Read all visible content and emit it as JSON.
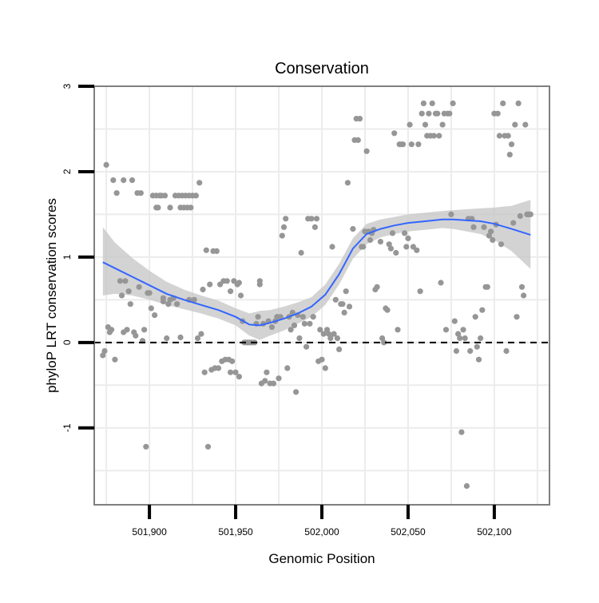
{
  "chart_data": {
    "type": "scatter",
    "title": "Conservation",
    "xlabel": "Genomic Position",
    "ylabel": "phyloP LRT conservation scores",
    "xlim": [
      501868,
      502132
    ],
    "ylim": [
      -1.9,
      3.0
    ],
    "x_ticks": [
      501900,
      501950,
      502000,
      502050,
      502100
    ],
    "x_tick_labels": [
      "501,900",
      "501,950",
      "502,000",
      "502,050",
      "502,100"
    ],
    "y_ticks": [
      -1,
      0,
      1,
      2,
      3
    ],
    "y_tick_labels": [
      "-1",
      "0",
      "1",
      "2",
      "3"
    ],
    "grid": true,
    "reference_line": {
      "y": 0,
      "style": "dashed"
    },
    "colors": {
      "points": "#969696",
      "smooth_line": "#3366ff",
      "ribbon": "#c8c8c8",
      "panel_border": "#7f7f7f",
      "grid": "#ececec"
    },
    "series": [
      {
        "name": "scores",
        "points": [
          [
            501873,
            -0.15
          ],
          [
            501874,
            -0.1
          ],
          [
            501875,
            2.08
          ],
          [
            501876,
            0.18
          ],
          [
            501877,
            0.12
          ],
          [
            501878,
            0.15
          ],
          [
            501879,
            1.9
          ],
          [
            501880,
            -0.2
          ],
          [
            501881,
            1.75
          ],
          [
            501883,
            0.72
          ],
          [
            501884,
            0.55
          ],
          [
            501885,
            1.9
          ],
          [
            501885,
            0.12
          ],
          [
            501886,
            0.72
          ],
          [
            501887,
            0.15
          ],
          [
            501888,
            0.6
          ],
          [
            501889,
            0.45
          ],
          [
            501890,
            1.9
          ],
          [
            501891,
            0.12
          ],
          [
            501892,
            0.08
          ],
          [
            501893,
            1.75
          ],
          [
            501894,
            0.65
          ],
          [
            501895,
            1.75
          ],
          [
            501896,
            0.02
          ],
          [
            501897,
            0.15
          ],
          [
            501898,
            -1.22
          ],
          [
            501899,
            0.58
          ],
          [
            501900,
            0.58
          ],
          [
            501901,
            0.4
          ],
          [
            501902,
            1.72
          ],
          [
            501903,
            0.32
          ],
          [
            501904,
            1.72
          ],
          [
            501904,
            1.58
          ],
          [
            501905,
            1.58
          ],
          [
            501906,
            1.72
          ],
          [
            501907,
            1.72
          ],
          [
            501908,
            0.52
          ],
          [
            501908,
            0.48
          ],
          [
            501909,
            1.72
          ],
          [
            501910,
            0.05
          ],
          [
            501911,
            0.45
          ],
          [
            501912,
            0.5
          ],
          [
            501912,
            1.58
          ],
          [
            501914,
            0.52
          ],
          [
            501915,
            1.72
          ],
          [
            501916,
            0.45
          ],
          [
            501917,
            1.72
          ],
          [
            501918,
            0.06
          ],
          [
            501918,
            1.58
          ],
          [
            501919,
            1.72
          ],
          [
            501920,
            1.58
          ],
          [
            501921,
            1.72
          ],
          [
            501922,
            1.58
          ],
          [
            501923,
            1.72
          ],
          [
            501923,
            0.5
          ],
          [
            501924,
            1.58
          ],
          [
            501925,
            1.72
          ],
          [
            501926,
            0.5
          ],
          [
            501927,
            1.72
          ],
          [
            501928,
            0.05
          ],
          [
            501929,
            1.87
          ],
          [
            501930,
            0.1
          ],
          [
            501931,
            0.62
          ],
          [
            501932,
            -0.35
          ],
          [
            501933,
            1.08
          ],
          [
            501934,
            -1.22
          ],
          [
            501935,
            0.68
          ],
          [
            501936,
            -0.32
          ],
          [
            501937,
            1.07
          ],
          [
            501938,
            -0.3
          ],
          [
            501939,
            1.07
          ],
          [
            501940,
            -0.3
          ],
          [
            501941,
            0.68
          ],
          [
            501942,
            -0.22
          ],
          [
            501943,
            0.72
          ],
          [
            501944,
            -0.2
          ],
          [
            501945,
            0.72
          ],
          [
            501946,
            -0.2
          ],
          [
            501947,
            0.6
          ],
          [
            501947,
            -0.35
          ],
          [
            501948,
            -0.22
          ],
          [
            501949,
            0.72
          ],
          [
            501950,
            -0.35
          ],
          [
            501951,
            0.68
          ],
          [
            501952,
            -0.4
          ],
          [
            501952,
            0.7
          ],
          [
            501953,
            0.55
          ],
          [
            501954,
            0.25
          ],
          [
            501955,
            0.0
          ],
          [
            501956,
            0.0
          ],
          [
            501957,
            0.0
          ],
          [
            501958,
            0.0
          ],
          [
            501959,
            0.0
          ],
          [
            501960,
            0.0
          ],
          [
            501961,
            0.0
          ],
          [
            501962,
            0.22
          ],
          [
            501963,
            0.3
          ],
          [
            501964,
            0.72
          ],
          [
            501964,
            0.68
          ],
          [
            501965,
            -0.48
          ],
          [
            501966,
            0.22
          ],
          [
            501967,
            -0.45
          ],
          [
            501968,
            -0.35
          ],
          [
            501969,
            0.25
          ],
          [
            501970,
            -0.48
          ],
          [
            501971,
            0.18
          ],
          [
            501972,
            -0.48
          ],
          [
            501973,
            0.25
          ],
          [
            501974,
            0.3
          ],
          [
            501975,
            -0.42
          ],
          [
            501976,
            0.3
          ],
          [
            501977,
            1.25
          ],
          [
            501978,
            1.35
          ],
          [
            501979,
            1.45
          ],
          [
            501980,
            -0.3
          ],
          [
            501981,
            0.3
          ],
          [
            501982,
            0.15
          ],
          [
            501983,
            0.35
          ],
          [
            501984,
            0.2
          ],
          [
            501985,
            -0.58
          ],
          [
            501986,
            0.32
          ],
          [
            501987,
            0.05
          ],
          [
            501988,
            1.05
          ],
          [
            501989,
            0.3
          ],
          [
            501990,
            0.22
          ],
          [
            501991,
            -0.05
          ],
          [
            501992,
            1.45
          ],
          [
            501993,
            0.22
          ],
          [
            501994,
            1.45
          ],
          [
            501995,
            0.3
          ],
          [
            501996,
            1.35
          ],
          [
            501997,
            1.45
          ],
          [
            501998,
            -0.22
          ],
          [
            501999,
            0.15
          ],
          [
            502000,
            -0.2
          ],
          [
            502001,
            0.1
          ],
          [
            502002,
            -0.3
          ],
          [
            502003,
            0.15
          ],
          [
            502004,
            0.1
          ],
          [
            502005,
            0.05
          ],
          [
            502006,
            1.12
          ],
          [
            502007,
            0.1
          ],
          [
            502008,
            0.5
          ],
          [
            502009,
            0.05
          ],
          [
            502010,
            -0.08
          ],
          [
            502011,
            0.45
          ],
          [
            502012,
            0.45
          ],
          [
            502013,
            0.35
          ],
          [
            502014,
            0.6
          ],
          [
            502015,
            1.87
          ],
          [
            502016,
            0.42
          ],
          [
            502018,
            1.33
          ],
          [
            502019,
            2.37
          ],
          [
            502020,
            2.62
          ],
          [
            502021,
            2.37
          ],
          [
            502022,
            2.62
          ],
          [
            502023,
            1.12
          ],
          [
            502024,
            1.12
          ],
          [
            502025,
            1.3
          ],
          [
            502026,
            2.24
          ],
          [
            502027,
            1.3
          ],
          [
            502028,
            1.2
          ],
          [
            502029,
            1.28
          ],
          [
            502030,
            1.32
          ],
          [
            502031,
            0.62
          ],
          [
            502032,
            0.65
          ],
          [
            502034,
            1.18
          ],
          [
            502035,
            0.05
          ],
          [
            502036,
            0.0
          ],
          [
            502037,
            0.4
          ],
          [
            502038,
            0.38
          ],
          [
            502039,
            1.15
          ],
          [
            502040,
            1.1
          ],
          [
            502041,
            1.28
          ],
          [
            502042,
            2.45
          ],
          [
            502043,
            1.05
          ],
          [
            502044,
            0.15
          ],
          [
            502045,
            2.32
          ],
          [
            502046,
            2.32
          ],
          [
            502047,
            2.32
          ],
          [
            502048,
            1.28
          ],
          [
            502049,
            1.12
          ],
          [
            502050,
            1.22
          ],
          [
            502051,
            2.55
          ],
          [
            502052,
            2.32
          ],
          [
            502053,
            1.12
          ],
          [
            502055,
            1.08
          ],
          [
            502056,
            2.32
          ],
          [
            502057,
            0.6
          ],
          [
            502058,
            2.68
          ],
          [
            502059,
            2.8
          ],
          [
            502060,
            2.55
          ],
          [
            502061,
            2.42
          ],
          [
            502062,
            2.68
          ],
          [
            502063,
            2.42
          ],
          [
            502064,
            2.8
          ],
          [
            502065,
            2.42
          ],
          [
            502066,
            2.68
          ],
          [
            502067,
            2.68
          ],
          [
            502068,
            2.42
          ],
          [
            502069,
            0.7
          ],
          [
            502070,
            2.55
          ],
          [
            502071,
            2.68
          ],
          [
            502072,
            0.15
          ],
          [
            502073,
            2.68
          ],
          [
            502074,
            2.68
          ],
          [
            502075,
            1.5
          ],
          [
            502076,
            2.8
          ],
          [
            502077,
            0.25
          ],
          [
            502078,
            -0.1
          ],
          [
            502079,
            0.1
          ],
          [
            502080,
            0.05
          ],
          [
            502081,
            -1.05
          ],
          [
            502082,
            0.15
          ],
          [
            502083,
            0.05
          ],
          [
            502084,
            -1.68
          ],
          [
            502085,
            1.45
          ],
          [
            502086,
            -0.1
          ],
          [
            502087,
            1.45
          ],
          [
            502088,
            1.35
          ],
          [
            502089,
            0.3
          ],
          [
            502090,
            -0.05
          ],
          [
            502091,
            -0.2
          ],
          [
            502092,
            0.05
          ],
          [
            502093,
            0.38
          ],
          [
            502094,
            1.35
          ],
          [
            502095,
            0.65
          ],
          [
            502096,
            0.65
          ],
          [
            502097,
            1.25
          ],
          [
            502098,
            1.3
          ],
          [
            502099,
            1.2
          ],
          [
            502100,
            2.68
          ],
          [
            502101,
            1.38
          ],
          [
            502102,
            2.68
          ],
          [
            502103,
            2.42
          ],
          [
            502104,
            1.15
          ],
          [
            502105,
            2.8
          ],
          [
            502106,
            2.42
          ],
          [
            502107,
            -0.1
          ],
          [
            502108,
            2.42
          ],
          [
            502109,
            2.2
          ],
          [
            502110,
            2.32
          ],
          [
            502111,
            1.4
          ],
          [
            502112,
            2.55
          ],
          [
            502113,
            0.3
          ],
          [
            502114,
            2.8
          ],
          [
            502115,
            1.48
          ],
          [
            502116,
            0.65
          ],
          [
            502117,
            0.55
          ],
          [
            502118,
            2.55
          ],
          [
            502119,
            1.5
          ],
          [
            502120,
            1.5
          ],
          [
            502121,
            1.5
          ]
        ]
      }
    ],
    "smooth": {
      "x": [
        501873,
        501880,
        501890,
        501900,
        501910,
        501920,
        501930,
        501940,
        501950,
        501958,
        501964,
        501970,
        501978,
        501986,
        501994,
        502002,
        502010,
        502018,
        502026,
        502034,
        502042,
        502050,
        502060,
        502070,
        502076,
        502084,
        502092,
        502100,
        502110,
        502121
      ],
      "y": [
        0.94,
        0.87,
        0.77,
        0.67,
        0.57,
        0.5,
        0.44,
        0.38,
        0.3,
        0.21,
        0.2,
        0.23,
        0.28,
        0.34,
        0.42,
        0.56,
        0.8,
        1.1,
        1.27,
        1.33,
        1.37,
        1.4,
        1.42,
        1.44,
        1.44,
        1.43,
        1.42,
        1.39,
        1.33,
        1.26
      ],
      "lower": [
        0.55,
        0.57,
        0.55,
        0.5,
        0.44,
        0.39,
        0.34,
        0.28,
        0.2,
        0.08,
        0.03,
        0.08,
        0.14,
        0.22,
        0.3,
        0.44,
        0.68,
        0.98,
        1.15,
        1.23,
        1.27,
        1.3,
        1.32,
        1.34,
        1.33,
        1.3,
        1.27,
        1.2,
        1.07,
        0.86
      ],
      "upper": [
        1.35,
        1.17,
        0.99,
        0.84,
        0.71,
        0.62,
        0.55,
        0.49,
        0.4,
        0.34,
        0.37,
        0.38,
        0.42,
        0.47,
        0.53,
        0.68,
        0.92,
        1.22,
        1.39,
        1.44,
        1.47,
        1.5,
        1.52,
        1.54,
        1.55,
        1.56,
        1.57,
        1.58,
        1.6,
        1.67
      ]
    }
  }
}
